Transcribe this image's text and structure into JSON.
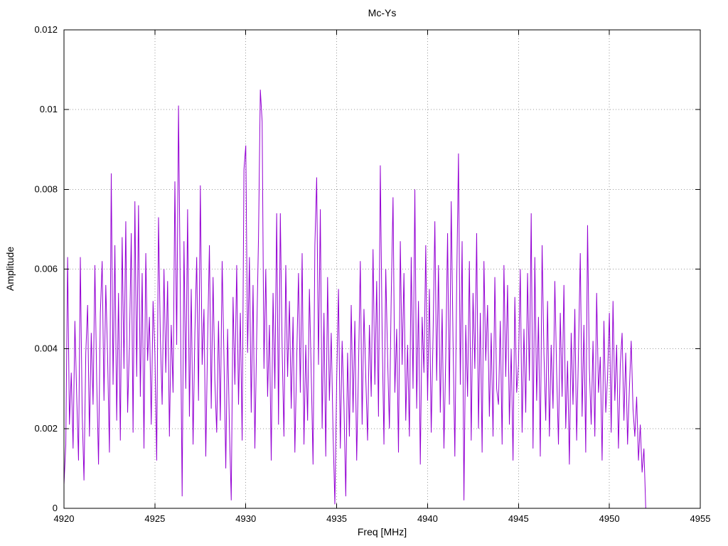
{
  "chart_data": {
    "type": "line",
    "title": "Mc-Ys",
    "xlabel": "Freq [MHz]",
    "ylabel": "Amplitude",
    "xlim": [
      4920,
      4955
    ],
    "ylim": [
      0,
      0.012
    ],
    "grid": "dotted",
    "legend": "none",
    "line_color": "#9400d3",
    "grid_color": "#9a9a9a",
    "border_color": "#000000",
    "x_tick_values": [
      4920,
      4925,
      4930,
      4935,
      4940,
      4945,
      4950,
      4955
    ],
    "x_tick_labels": [
      "4920",
      "4925",
      "4930",
      "4935",
      "4940",
      "4945",
      "4950",
      "4955"
    ],
    "y_tick_values": [
      0,
      0.002,
      0.004,
      0.006,
      0.008,
      0.01,
      0.012
    ],
    "y_tick_labels": [
      "0",
      "0.002",
      "0.004",
      "0.006",
      "0.008",
      "0.01",
      "0.012"
    ],
    "x_start": 4920.0,
    "x_step": 0.1,
    "values_scale": 0.001,
    "values": [
      0.6,
      1.6,
      6.3,
      2.1,
      3.4,
      1.5,
      4.7,
      2.8,
      1.2,
      6.3,
      2.4,
      0.7,
      3.9,
      5.1,
      1.8,
      4.4,
      2.6,
      6.1,
      3.2,
      1.1,
      4.9,
      6.2,
      2.7,
      5.6,
      3.8,
      1.4,
      8.4,
      3.1,
      6.6,
      2.2,
      5.4,
      1.7,
      6.8,
      3.5,
      7.2,
      2.4,
      4.1,
      6.9,
      1.9,
      7.7,
      3.3,
      7.6,
      2.8,
      5.9,
      1.5,
      6.4,
      3.7,
      4.8,
      2.1,
      5.2,
      3.9,
      1.2,
      7.3,
      4.3,
      2.6,
      6.0,
      3.4,
      5.7,
      1.8,
      4.6,
      2.9,
      8.2,
      4.1,
      10.1,
      5.3,
      0.3,
      6.7,
      3.0,
      7.5,
      2.3,
      5.5,
      1.6,
      4.4,
      6.3,
      2.7,
      8.1,
      3.6,
      5.0,
      1.3,
      4.2,
      6.6,
      2.5,
      5.8,
      3.2,
      1.9,
      4.7,
      2.2,
      6.2,
      3.8,
      1.0,
      4.5,
      2.0,
      0.2,
      5.3,
      3.1,
      6.1,
      2.6,
      4.9,
      1.7,
      8.5,
      9.1,
      3.9,
      6.3,
      2.4,
      5.6,
      1.5,
      4.3,
      6.8,
      10.5,
      9.7,
      3.5,
      6.0,
      2.8,
      4.6,
      1.2,
      5.4,
      3.0,
      7.4,
      2.1,
      7.4,
      4.0,
      1.8,
      6.1,
      3.3,
      5.2,
      2.5,
      4.8,
      1.4,
      3.7,
      5.9,
      2.9,
      6.4,
      1.6,
      4.1,
      2.2,
      5.5,
      3.4,
      1.1,
      6.6,
      8.3,
      3.6,
      7.5,
      2.0,
      4.9,
      1.3,
      5.8,
      2.7,
      4.4,
      1.9,
      0.1,
      3.2,
      5.5,
      1.5,
      4.2,
      2.6,
      0.3,
      3.9,
      1.8,
      5.1,
      2.4,
      4.7,
      1.2,
      3.5,
      6.2,
      2.1,
      5.0,
      3.3,
      1.7,
      4.6,
      2.8,
      6.5,
      3.1,
      5.7,
      2.3,
      8.6,
      4.4,
      1.6,
      6.0,
      3.8,
      2.0,
      5.3,
      7.8,
      2.9,
      4.5,
      1.4,
      6.7,
      3.6,
      5.9,
      2.2,
      4.1,
      1.8,
      6.3,
      3.0,
      8.0,
      2.5,
      5.2,
      1.1,
      4.8,
      3.4,
      6.6,
      2.7,
      5.5,
      1.9,
      4.3,
      7.2,
      3.2,
      6.1,
      2.4,
      5.0,
      1.5,
      3.8,
      6.9,
      2.6,
      7.7,
      4.2,
      1.3,
      5.6,
      8.9,
      3.1,
      6.7,
      0.2,
      4.6,
      2.8,
      6.2,
      1.7,
      5.4,
      3.5,
      6.9,
      2.0,
      4.9,
      1.4,
      6.2,
      3.7,
      5.1,
      2.3,
      4.4,
      1.8,
      5.8,
      3.0,
      2.6,
      4.7,
      1.6,
      6.1,
      3.3,
      5.6,
      2.1,
      4.0,
      1.2,
      5.3,
      2.9,
      3.6,
      6.0,
      1.9,
      4.5,
      2.4,
      5.9,
      3.2,
      7.4,
      1.5,
      6.3,
      2.7,
      4.8,
      1.3,
      6.6,
      3.9,
      2.2,
      5.2,
      1.8,
      4.1,
      2.5,
      5.7,
      3.4,
      1.6,
      4.9,
      2.8,
      5.6,
      2.0,
      3.7,
      1.1,
      4.4,
      2.6,
      5.0,
      1.7,
      3.9,
      6.4,
      2.3,
      4.6,
      1.4,
      7.1,
      3.5,
      2.1,
      4.2,
      1.8,
      5.4,
      2.9,
      3.8,
      1.2,
      4.7,
      2.4,
      3.3,
      4.9,
      1.9,
      5.2,
      2.7,
      4.1,
      1.5,
      3.6,
      4.4,
      2.2,
      3.9,
      1.6,
      3.0,
      4.2,
      2.5,
      1.8,
      2.8,
      1.2,
      2.1,
      0.9,
      1.5,
      0.0
    ]
  }
}
